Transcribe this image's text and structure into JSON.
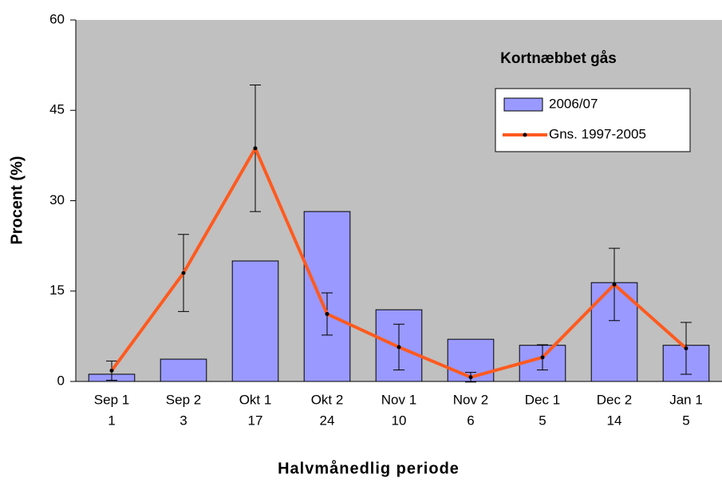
{
  "chart_data": {
    "type": "bar",
    "legend_title": "Kortnæbbet gås",
    "xlabel": "Halvmånedlig periode",
    "ylabel": "Procent (%)",
    "categories": [
      "Sep 1",
      "Sep 2",
      "Okt 1",
      "Okt 2",
      "Nov 1",
      "Nov 2",
      "Dec 1",
      "Dec 2",
      "Jan 1"
    ],
    "category_counts": [
      1,
      3,
      17,
      24,
      10,
      6,
      5,
      14,
      5
    ],
    "series": [
      {
        "name": "2006/07",
        "type": "bar",
        "color": "#9999ff",
        "values": [
          1.2,
          3.7,
          20,
          28.2,
          11.9,
          7,
          6,
          16.4,
          6
        ]
      },
      {
        "name": "Gns. 1997-2005",
        "type": "line",
        "color": "#ff5a1f",
        "values": [
          1.8,
          18,
          38.7,
          11.2,
          5.7,
          0.7,
          4,
          16.1,
          5.5
        ],
        "errors": [
          1.6,
          6.4,
          10.5,
          3.5,
          3.8,
          0.8,
          2.1,
          6,
          4.3
        ]
      }
    ],
    "ylim": [
      0,
      60
    ],
    "yticks": [
      0,
      15,
      30,
      45,
      60
    ],
    "grid": false,
    "legend": "upper right"
  }
}
